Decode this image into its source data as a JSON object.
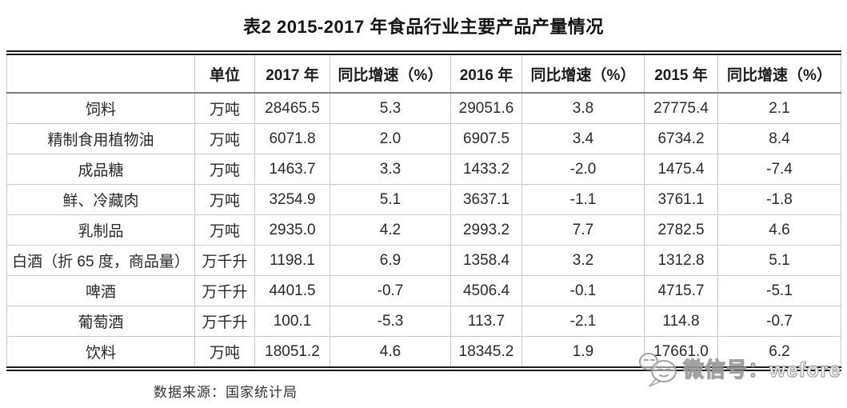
{
  "page": {
    "title": "表2 2015-2017 年食品行业主要产品产量情况",
    "source_note": "数据来源：国家统计局"
  },
  "table": {
    "headers": [
      "",
      "单位",
      "2017 年",
      "同比增速（%）",
      "2016 年",
      "同比增速（%）",
      "2015 年",
      "同比增速（%）"
    ],
    "rows": [
      [
        "饲料",
        "万吨",
        "28465.5",
        "5.3",
        "29051.6",
        "3.8",
        "27775.4",
        "2.1"
      ],
      [
        "精制食用植物油",
        "万吨",
        "6071.8",
        "2.0",
        "6907.5",
        "3.4",
        "6734.2",
        "8.4"
      ],
      [
        "成品糖",
        "万吨",
        "1463.7",
        "3.3",
        "1433.2",
        "-2.0",
        "1475.4",
        "-7.4"
      ],
      [
        "鲜、冷藏肉",
        "万吨",
        "3254.9",
        "5.1",
        "3637.1",
        "-1.1",
        "3761.1",
        "-1.8"
      ],
      [
        "乳制品",
        "万吨",
        "2935.0",
        "4.2",
        "2993.2",
        "7.7",
        "2782.5",
        "4.6"
      ],
      [
        "白酒（折 65 度，商品量）",
        "万千升",
        "1198.1",
        "6.9",
        "1358.4",
        "3.2",
        "1312.8",
        "5.1"
      ],
      [
        "啤酒",
        "万千升",
        "4401.5",
        "-0.7",
        "4506.4",
        "-0.1",
        "4715.7",
        "-5.1"
      ],
      [
        "葡萄酒",
        "万千升",
        "100.1",
        "-5.3",
        "113.7",
        "-2.1",
        "114.8",
        "-0.7"
      ],
      [
        "饮料",
        "万吨",
        "18051.2",
        "4.6",
        "18345.2",
        "1.9",
        "17661.0",
        "6.2"
      ]
    ]
  },
  "watermark": {
    "icon": "wechat-bubble-icon",
    "text": "微信号：wefore"
  },
  "colors": {
    "background": "#ffffff",
    "text": "#262626",
    "title_text": "#141414",
    "border_dark": "#1a1a1a",
    "border_light": "#c9c9c9",
    "header_rule": "#7f7f7f",
    "watermark_fill": "#ffffff",
    "watermark_outline": "#9a9a9a"
  }
}
